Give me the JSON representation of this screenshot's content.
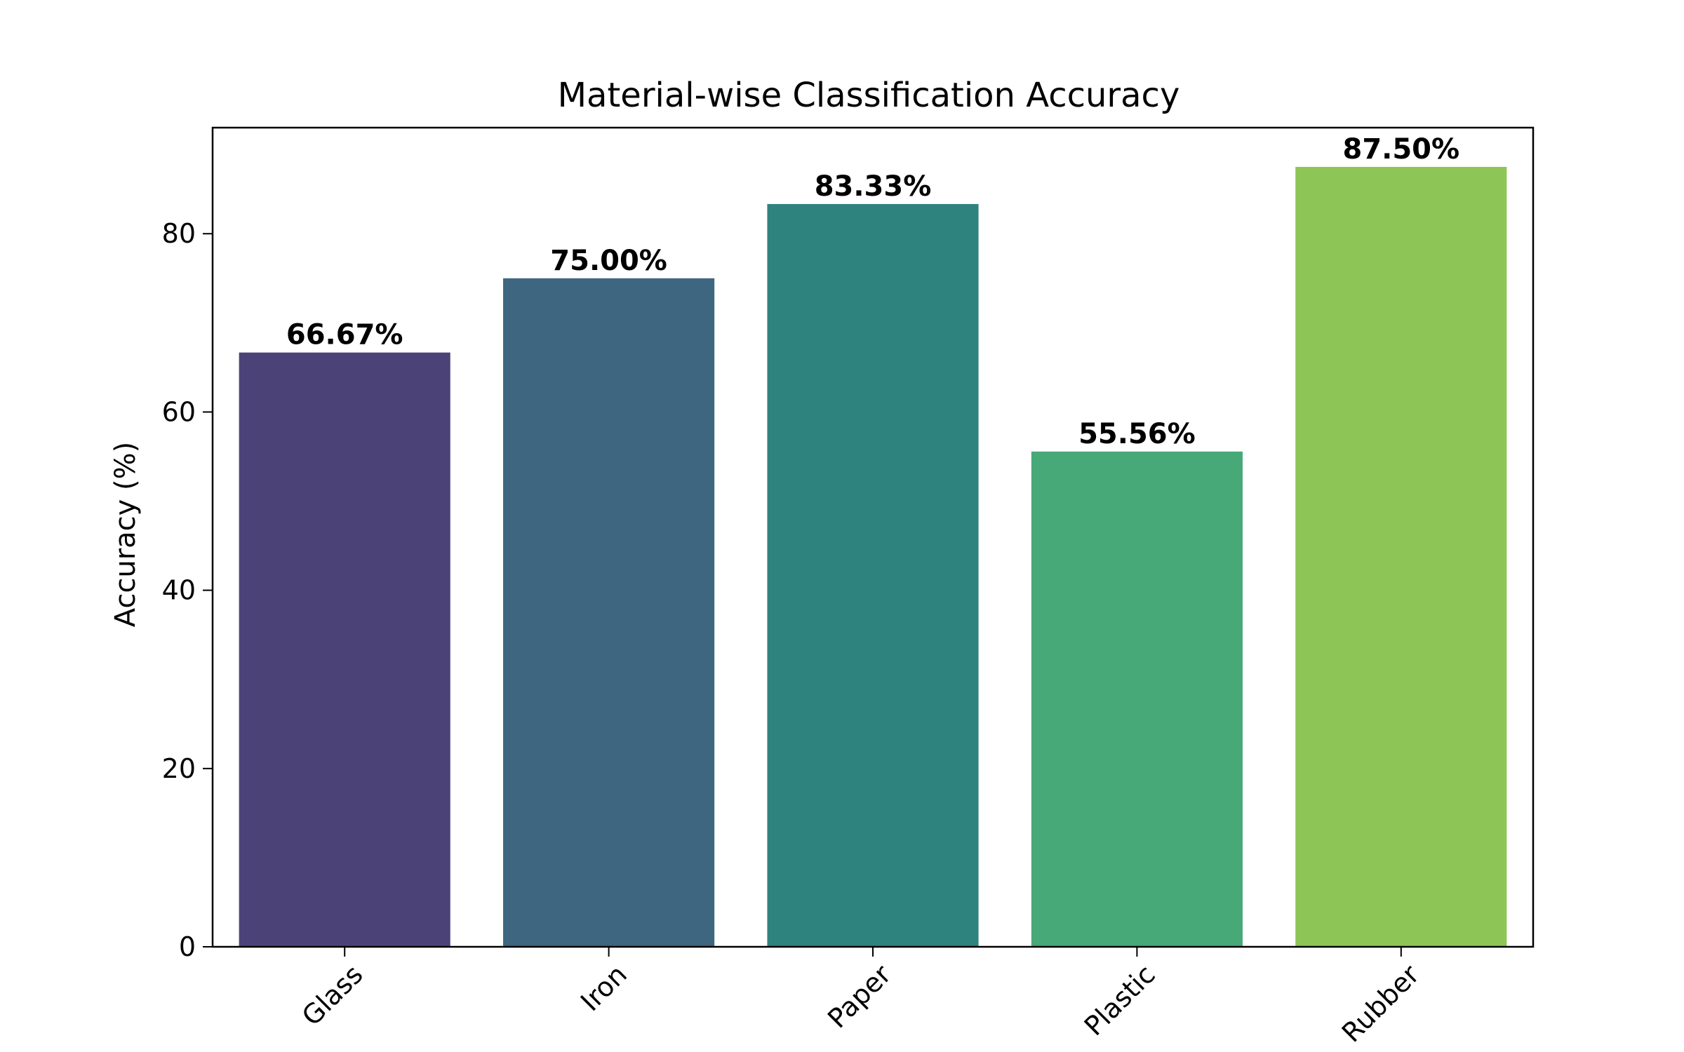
{
  "chart_data": {
    "type": "bar",
    "title": "Material-wise Classification Accuracy",
    "xlabel": "",
    "ylabel": "Accuracy (%)",
    "categories": [
      "Glass",
      "Iron",
      "Paper",
      "Plastic",
      "Rubber"
    ],
    "values": [
      66.67,
      75.0,
      83.33,
      55.56,
      87.5
    ],
    "data_labels": [
      "66.67%",
      "75.00%",
      "83.33%",
      "55.56%",
      "87.50%"
    ],
    "colors": [
      "#4b4378",
      "#3e6680",
      "#2e837e",
      "#47a878",
      "#8dc556"
    ],
    "ylim": [
      0,
      91.9
    ],
    "yticks": [
      0,
      20,
      40,
      60,
      80
    ],
    "ytick_labels": [
      "0",
      "20",
      "40",
      "60",
      "80"
    ],
    "x_tick_rotation": "45deg",
    "grid": false,
    "legend": "none"
  }
}
